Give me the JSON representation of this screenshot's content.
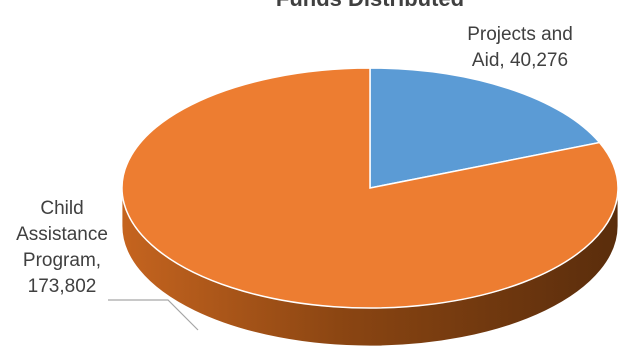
{
  "chart_data": {
    "type": "pie",
    "title": "",
    "slices": [
      {
        "label_lines": [
          "Projects and",
          "Aid,  40,276"
        ],
        "value": 40276,
        "color": "#5b9bd5",
        "side_color": "#3f6f9f"
      },
      {
        "label_lines": [
          "Child",
          "Assistance",
          "Program,",
          "173,802"
        ],
        "value": 173802,
        "color": "#ed7d31",
        "side_color": "#a85718"
      }
    ],
    "legend": "none",
    "three_d": true
  }
}
